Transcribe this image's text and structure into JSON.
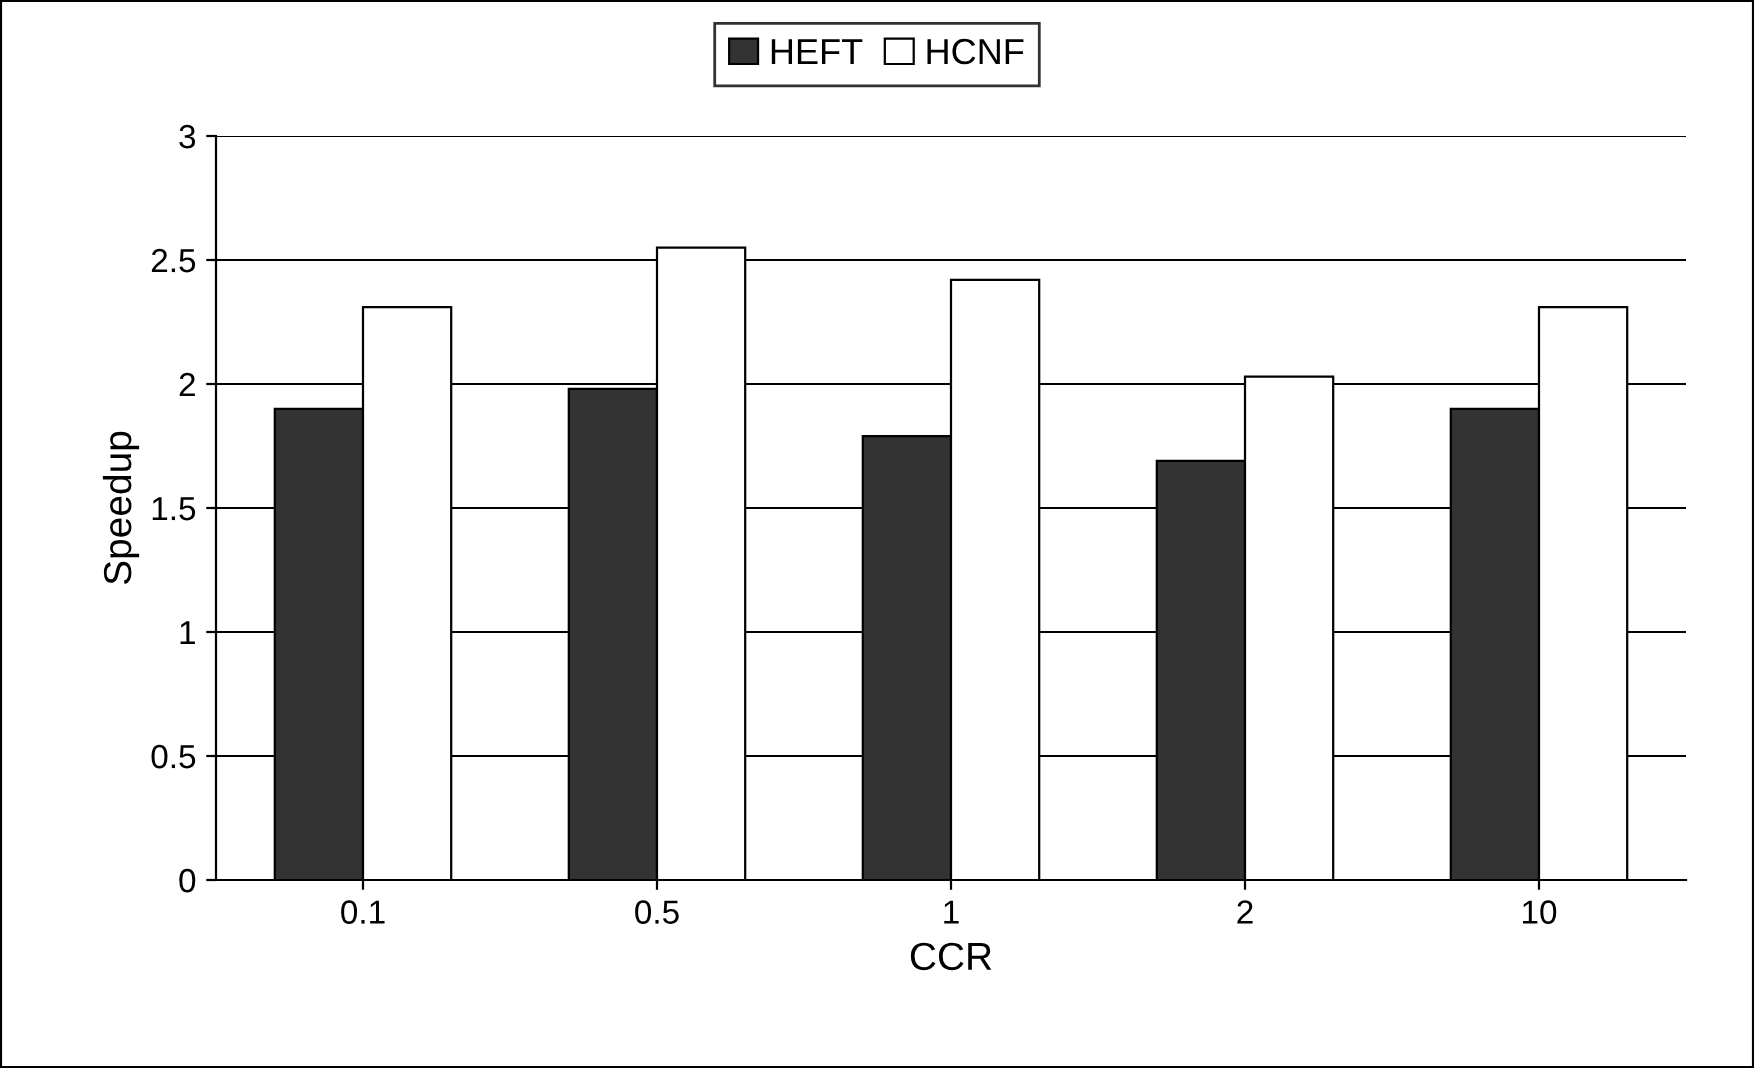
{
  "chart_data": {
    "type": "bar",
    "xlabel": "CCR",
    "ylabel": "Speedup",
    "categories": [
      "0.1",
      "0.5",
      "1",
      "2",
      "10"
    ],
    "series": [
      {
        "name": "HEFT",
        "color": "#333333",
        "values": [
          1.9,
          1.98,
          1.79,
          1.69,
          1.9
        ]
      },
      {
        "name": "HCNF",
        "color": "#ffffff",
        "values": [
          2.31,
          2.55,
          2.42,
          2.03,
          2.31
        ]
      }
    ],
    "ylim": [
      0,
      3
    ],
    "yticks": [
      0,
      0.5,
      1,
      1.5,
      2,
      2.5,
      3
    ],
    "grid": "y",
    "legend": "top"
  }
}
